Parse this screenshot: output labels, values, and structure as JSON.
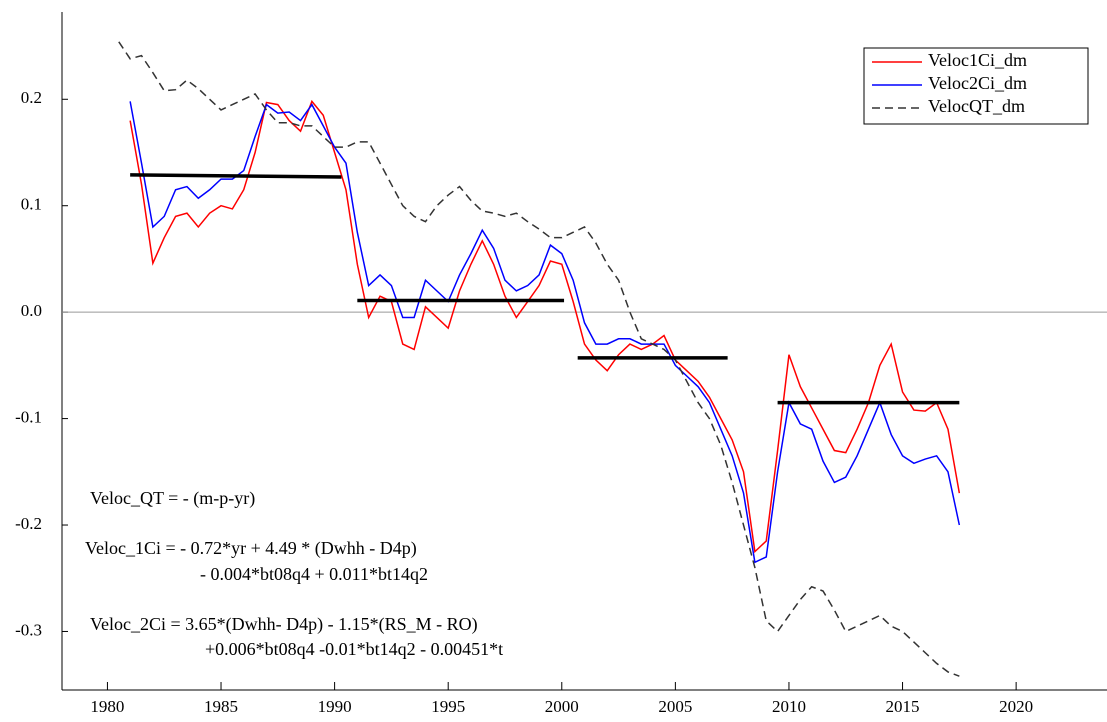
{
  "chart_data": {
    "type": "line",
    "x": [
      1980.5,
      1981,
      1981.5,
      1982,
      1982.5,
      1983,
      1983.5,
      1984,
      1984.5,
      1985,
      1985.5,
      1986,
      1986.5,
      1987,
      1987.5,
      1988,
      1988.5,
      1989,
      1989.5,
      1990,
      1990.5,
      1991,
      1991.5,
      1992,
      1992.5,
      1993,
      1993.5,
      1994,
      1994.5,
      1995,
      1995.5,
      1996,
      1996.5,
      1997,
      1997.5,
      1998,
      1998.5,
      1999,
      1999.5,
      2000,
      2000.5,
      2001,
      2001.5,
      2002,
      2002.5,
      2003,
      2003.5,
      2004,
      2004.5,
      2005,
      2005.5,
      2006,
      2006.5,
      2007,
      2007.5,
      2008,
      2008.5,
      2009,
      2009.5,
      2010,
      2010.5,
      2011,
      2011.5,
      2012,
      2012.5,
      2013,
      2013.5,
      2014,
      2014.5,
      2015,
      2015.5,
      2016,
      2016.5,
      2017,
      2017.5
    ],
    "series": [
      {
        "name": "Veloc1Ci_dm",
        "color": "#ff0000",
        "values": [
          null,
          0.18,
          0.12,
          0.046,
          0.07,
          0.09,
          0.093,
          0.08,
          0.093,
          0.1,
          0.097,
          0.115,
          0.15,
          0.197,
          0.195,
          0.18,
          0.17,
          0.198,
          0.185,
          0.15,
          0.115,
          0.045,
          -0.005,
          0.015,
          0.01,
          -0.03,
          -0.035,
          0.005,
          -0.005,
          -0.015,
          0.02,
          0.045,
          0.067,
          0.045,
          0.015,
          -0.005,
          0.01,
          0.025,
          0.048,
          0.045,
          0.01,
          -0.03,
          -0.045,
          -0.055,
          -0.04,
          -0.03,
          -0.035,
          -0.03,
          -0.022,
          -0.045,
          -0.055,
          -0.065,
          -0.08,
          -0.1,
          -0.12,
          -0.15,
          -0.225,
          -0.215,
          -0.13,
          -0.04,
          -0.07,
          -0.09,
          -0.11,
          -0.13,
          -0.132,
          -0.11,
          -0.085,
          -0.05,
          -0.03,
          -0.075,
          -0.092,
          -0.093,
          -0.085,
          -0.11,
          -0.17
        ]
      },
      {
        "name": "Veloc2Ci_dm",
        "color": "#0000ff",
        "values": [
          null,
          0.198,
          0.14,
          0.08,
          0.09,
          0.115,
          0.118,
          0.107,
          0.115,
          0.125,
          0.125,
          0.133,
          0.165,
          0.195,
          0.187,
          0.188,
          0.18,
          0.195,
          0.175,
          0.155,
          0.14,
          0.075,
          0.025,
          0.035,
          0.025,
          -0.005,
          -0.005,
          0.03,
          0.02,
          0.01,
          0.035,
          0.055,
          0.077,
          0.06,
          0.03,
          0.02,
          0.025,
          0.035,
          0.063,
          0.055,
          0.03,
          -0.01,
          -0.03,
          -0.03,
          -0.025,
          -0.025,
          -0.03,
          -0.03,
          -0.03,
          -0.05,
          -0.06,
          -0.07,
          -0.085,
          -0.11,
          -0.135,
          -0.17,
          -0.235,
          -0.23,
          -0.15,
          -0.085,
          -0.105,
          -0.11,
          -0.14,
          -0.16,
          -0.155,
          -0.135,
          -0.11,
          -0.085,
          -0.115,
          -0.135,
          -0.142,
          -0.138,
          -0.135,
          -0.15,
          -0.2
        ]
      },
      {
        "name": "VelocQT_dm",
        "color": "#333333",
        "dashed": true,
        "values": [
          0.254,
          0.238,
          0.241,
          0.225,
          0.208,
          0.209,
          0.218,
          0.21,
          0.2,
          0.19,
          0.195,
          0.2,
          0.205,
          0.19,
          0.178,
          0.178,
          0.175,
          0.175,
          0.165,
          0.155,
          0.155,
          0.16,
          0.16,
          0.14,
          0.12,
          0.1,
          0.09,
          0.085,
          0.1,
          0.11,
          0.118,
          0.105,
          0.095,
          0.093,
          0.09,
          0.093,
          0.085,
          0.078,
          0.07,
          0.07,
          0.075,
          0.08,
          0.065,
          0.045,
          0.03,
          0.0,
          -0.025,
          -0.03,
          -0.035,
          -0.045,
          -0.065,
          -0.085,
          -0.1,
          -0.125,
          -0.16,
          -0.2,
          -0.24,
          -0.29,
          -0.3,
          -0.285,
          -0.27,
          -0.258,
          -0.262,
          -0.28,
          -0.3,
          -0.295,
          -0.29,
          -0.285,
          -0.295,
          -0.3,
          -0.31,
          -0.32,
          -0.33,
          -0.338,
          -0.342
        ]
      }
    ],
    "segments": [
      {
        "x": [
          1981,
          1990.3
        ],
        "y": [
          0.129,
          0.127
        ]
      },
      {
        "x": [
          1991,
          2000.1
        ],
        "y": [
          0.011,
          0.011
        ]
      },
      {
        "x": [
          2000.7,
          2007.3
        ],
        "y": [
          -0.043,
          -0.043
        ]
      },
      {
        "x": [
          2009.5,
          2017.5
        ],
        "y": [
          -0.085,
          -0.085
        ]
      }
    ],
    "segment_color": "#000000",
    "annotations": [
      "Veloc_QT = - (m-p-yr)",
      "Veloc_1Ci = - 0.72*yr + 4.49 * (Dwhh - D4p)",
      "- 0.004*bt08q4 + 0.011*bt14q2",
      "Veloc_2Ci = 3.65*(Dwhh- D4p) -  1.15*(RS_M -  RO)",
      "+0.006*bt08q4 -0.01*bt14q2 - 0.00451*t"
    ],
    "xlim": [
      1978,
      2024
    ],
    "ylim": [
      -0.355,
      0.282
    ],
    "xticks": [
      1980,
      1985,
      1990,
      1995,
      2000,
      2005,
      2010,
      2015,
      2020
    ],
    "yticks": [
      -0.3,
      -0.2,
      -0.1,
      {
        "value": 0,
        "label": "0.0"
      },
      0.1,
      0.2
    ],
    "zero_line": true,
    "legend": "upper right"
  }
}
